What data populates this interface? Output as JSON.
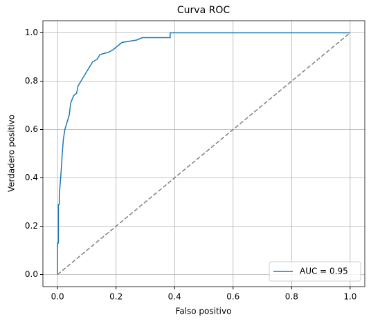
{
  "chart_data": {
    "type": "line",
    "title": "Curva ROC",
    "x_label": "Falso positivo",
    "y_label": "Verdadero positivo",
    "xlim": [
      -0.05,
      1.05
    ],
    "ylim": [
      -0.05,
      1.05
    ],
    "xticks": [
      {
        "value": 0,
        "label": "0.0"
      },
      0.2,
      0.4,
      0.6,
      0.8,
      {
        "value": 1,
        "label": "1.0"
      }
    ],
    "yticks": [
      {
        "value": 0,
        "label": "0.0"
      },
      0.2,
      0.4,
      0.6,
      0.8,
      {
        "value": 1,
        "label": "1.0"
      }
    ],
    "grid": true,
    "legend": "lower right",
    "series": [
      {
        "name": "AUC = 0.95",
        "color": "#1f77b4",
        "dash": "solid",
        "x": [
          0,
          0,
          0.003,
          0.003,
          0.006,
          0.006,
          0.01,
          0.013,
          0.016,
          0.02,
          0.025,
          0.03,
          0.035,
          0.04,
          0.045,
          0.055,
          0.065,
          0.07,
          0.08,
          0.09,
          0.1,
          0.11,
          0.12,
          0.135,
          0.145,
          0.175,
          0.19,
          0.21,
          0.22,
          0.27,
          0.29,
          0.385,
          0.385,
          1.0
        ],
        "values": [
          0,
          0.13,
          0.13,
          0.29,
          0.29,
          0.33,
          0.39,
          0.44,
          0.5,
          0.56,
          0.6,
          0.62,
          0.64,
          0.66,
          0.71,
          0.74,
          0.75,
          0.78,
          0.8,
          0.82,
          0.84,
          0.86,
          0.88,
          0.89,
          0.91,
          0.92,
          0.93,
          0.95,
          0.96,
          0.97,
          0.98,
          0.98,
          1.0,
          1.0
        ]
      },
      {
        "color": "#7f7f7f",
        "dash": "dashed",
        "x": [
          0,
          1
        ],
        "values": [
          0,
          1
        ]
      }
    ]
  }
}
